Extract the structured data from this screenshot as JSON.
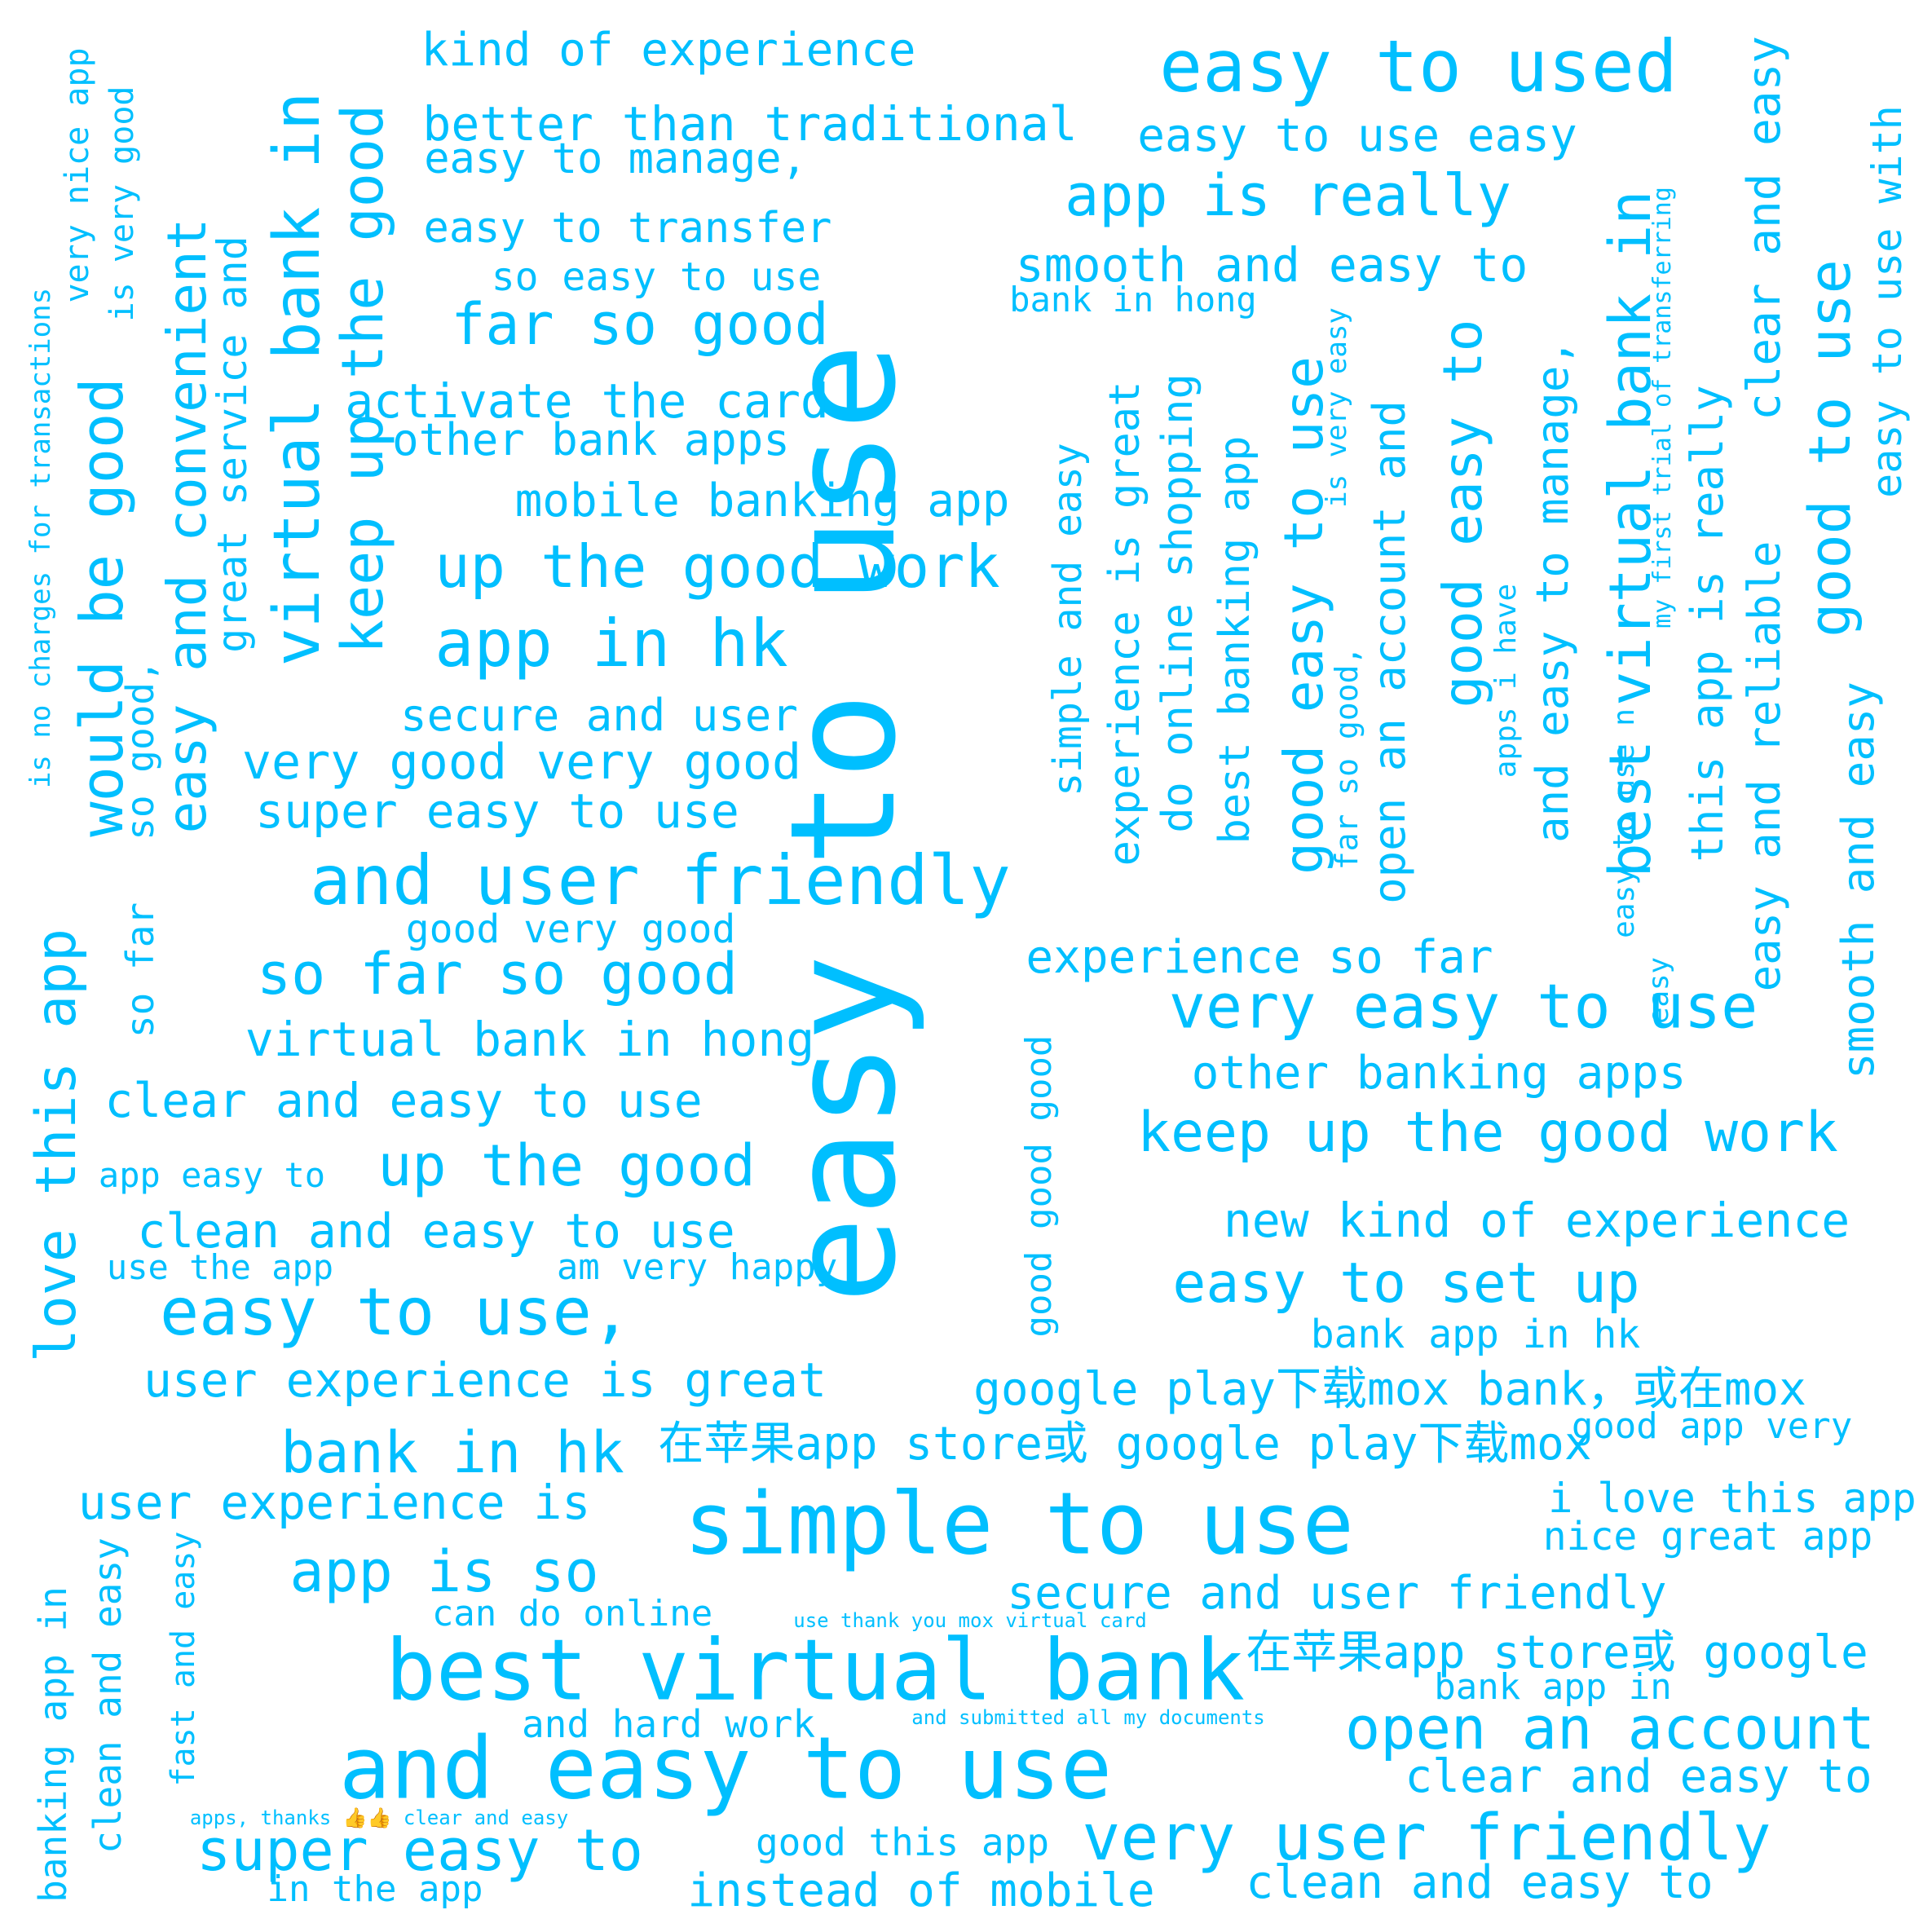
{
  "color": "#00BFFF",
  "background": "#FFFFFF",
  "words": [
    "easy to use",
    "and easy to use",
    "simple to use",
    "best virtual bank",
    "and user friendly",
    "easy to used",
    "virtual bank in",
    "very easy to use",
    "keep up the good",
    "keep up the good work",
    "up the good work",
    "app in hk",
    "easy to use,",
    "very user friendly",
    "would be good",
    "easy and convenient",
    "so far so good",
    "love this app",
    "best virtual bank in",
    "open an account",
    "good easy to use",
    "up the good",
    "far so good",
    "app is really",
    "super easy to",
    "good to use",
    "bank in hk",
    "app is so",
    "easy to set up",
    "good easy to",
    "experience is great",
    "kind of experience",
    "better than traditional",
    "easy to use easy",
    "easy to manage,",
    "easy to transfer",
    "so easy to use",
    "smooth and easy to",
    "activate the card",
    "other bank apps",
    "mobile banking app",
    "secure and user",
    "very good very good",
    "super easy to use",
    "good very good",
    "virtual bank in hong",
    "clear and easy to use",
    "clean and easy to use",
    "user experience is great",
    "user experience is",
    "experience so far",
    "other banking apps",
    "new kind of experience",
    "bank app in hk",
    "google play下载mox bank，或在mox",
    "在苹果app store或 google play下载mox",
    "在苹果app store或 google",
    "good app very",
    "i love this app",
    "nice great app",
    "secure and user friendly",
    "can do online",
    "bank app in",
    "and hard work",
    "clear and easy to",
    "clean and easy to",
    "good this app",
    "instead of mobile",
    "in the app",
    "app easy to",
    "use the app",
    "am very happy",
    "bank in hong",
    "great service and",
    "easy to use with",
    "clear and easy",
    "this app is really",
    "easy and reliable",
    "smooth and easy",
    "and easy to manage,",
    "open an account and",
    "do online shopping",
    "best banking app",
    "simple and easy",
    "good good good",
    "so far",
    "so good,",
    "is very good",
    "very nice app",
    "is no charges for transactions",
    "banking app in",
    "clean and easy",
    "fast and easy",
    "apps i have",
    "my first trial of transferring",
    "is very easy",
    "far so good,",
    "easy to use n",
    "easy",
    "use thank you mox virtual card",
    "and submitted all my documents",
    "apps, thanks 👍👍 clear and easy"
  ]
}
